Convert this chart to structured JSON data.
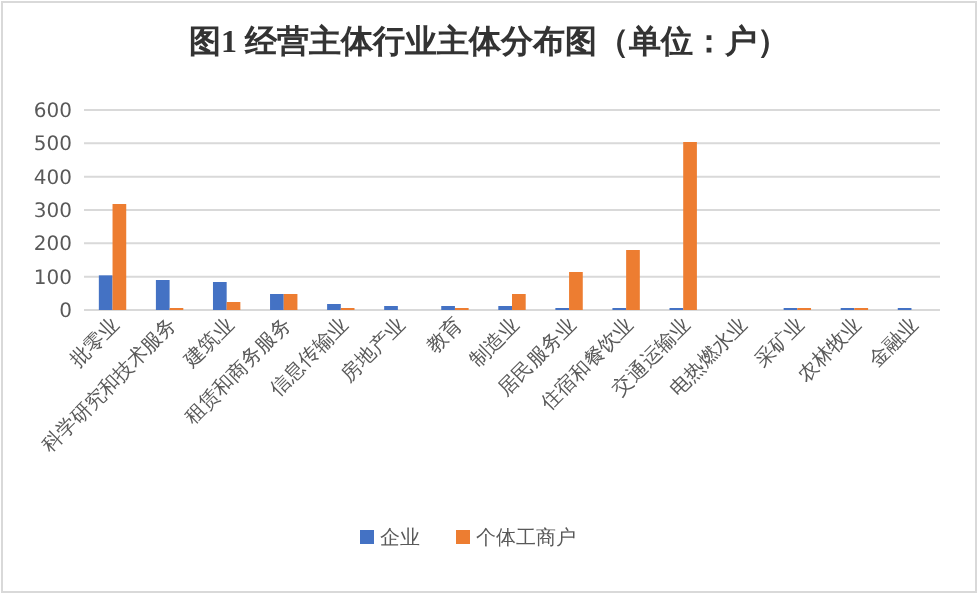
{
  "chart_data": {
    "type": "bar",
    "title": "图1 经营主体行业主体分布图（单位：户）",
    "categories": [
      "批零业",
      "科学研究和技术服务",
      "建筑业",
      "租赁和商务服务",
      "信息传输业",
      "房地产业",
      "教育",
      "制造业",
      "居民服务业",
      "住宿和餐饮业",
      "交通运输业",
      "电热燃水业",
      "采矿业",
      "农林牧业",
      "金融业"
    ],
    "series": [
      {
        "name": "企业",
        "color": "#4472c4",
        "values": [
          104,
          90,
          84,
          48,
          18,
          12,
          12,
          12,
          6,
          6,
          6,
          null,
          6,
          6,
          6
        ]
      },
      {
        "name": "个体工商户",
        "color": "#ed7d31",
        "values": [
          318,
          6,
          24,
          48,
          6,
          null,
          6,
          48,
          114,
          180,
          504,
          null,
          6,
          6,
          null
        ]
      }
    ],
    "ylim": [
      0,
      600
    ],
    "yticks": [
      0,
      100,
      200,
      300,
      400,
      500,
      600
    ],
    "grid": "y",
    "legend": "bottom"
  }
}
